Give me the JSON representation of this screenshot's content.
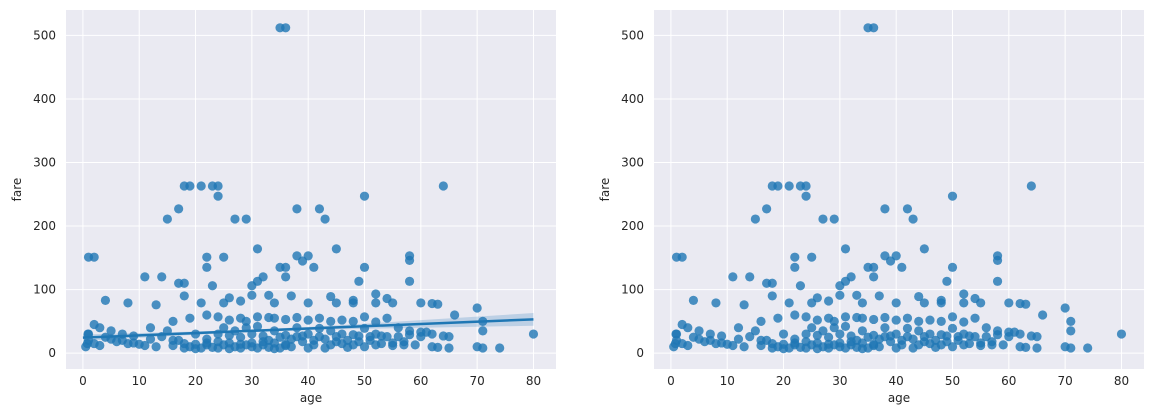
{
  "chart_data": [
    {
      "type": "scatter",
      "title": "",
      "xlabel": "age",
      "ylabel": "fare",
      "xlim": [
        -3,
        84
      ],
      "ylim": [
        -25,
        540
      ],
      "xticks": [
        0,
        10,
        20,
        30,
        40,
        50,
        60,
        70,
        80
      ],
      "yticks": [
        0,
        100,
        200,
        300,
        400,
        500
      ],
      "grid": true,
      "regression": {
        "shown": true,
        "intercept": 24.3,
        "slope": 0.36,
        "ci": [
          [
            0,
            5
          ],
          [
            20,
            2.5
          ],
          [
            30,
            2
          ],
          [
            40,
            2.5
          ],
          [
            50,
            4
          ],
          [
            60,
            6
          ],
          [
            70,
            8
          ],
          [
            80,
            10
          ]
        ]
      },
      "colors": {
        "point": "#1f77b4",
        "background": "#eaeaf2",
        "grid": "#ffffff"
      }
    },
    {
      "type": "scatter",
      "title": "",
      "xlabel": "age",
      "ylabel": "fare",
      "xlim": [
        -3,
        84
      ],
      "ylim": [
        -25,
        540
      ],
      "xticks": [
        0,
        10,
        20,
        30,
        40,
        50,
        60,
        70,
        80
      ],
      "yticks": [
        0,
        100,
        200,
        300,
        400,
        500
      ],
      "grid": true,
      "regression": {
        "shown": false
      },
      "colors": {
        "point": "#1f77b4",
        "background": "#eaeaf2",
        "grid": "#ffffff"
      }
    }
  ],
  "points": [
    [
      35,
      512
    ],
    [
      36,
      512
    ],
    [
      18,
      263
    ],
    [
      19,
      263
    ],
    [
      23,
      263
    ],
    [
      24,
      263
    ],
    [
      21,
      263
    ],
    [
      64,
      263
    ],
    [
      50,
      247
    ],
    [
      24,
      247
    ],
    [
      17,
      227
    ],
    [
      38,
      227
    ],
    [
      42,
      227
    ],
    [
      15,
      211
    ],
    [
      27,
      211
    ],
    [
      29,
      211
    ],
    [
      43,
      211
    ],
    [
      31,
      164
    ],
    [
      45,
      164
    ],
    [
      1,
      151
    ],
    [
      2,
      151
    ],
    [
      22,
      151
    ],
    [
      25,
      151
    ],
    [
      58,
      153
    ],
    [
      58,
      146
    ],
    [
      38,
      153
    ],
    [
      40,
      153
    ],
    [
      22,
      135
    ],
    [
      36,
      135
    ],
    [
      35,
      135
    ],
    [
      50,
      135
    ],
    [
      41,
      135
    ],
    [
      39,
      145
    ],
    [
      11,
      120
    ],
    [
      14,
      120
    ],
    [
      36,
      120
    ],
    [
      32,
      120
    ],
    [
      18,
      110
    ],
    [
      17,
      110
    ],
    [
      23,
      106
    ],
    [
      30,
      106
    ],
    [
      31,
      113
    ],
    [
      49,
      113
    ],
    [
      52,
      93
    ],
    [
      58,
      113
    ],
    [
      30,
      91
    ],
    [
      33,
      91
    ],
    [
      4,
      83
    ],
    [
      8,
      79
    ],
    [
      13,
      76
    ],
    [
      21,
      79
    ],
    [
      25,
      79
    ],
    [
      28,
      82
    ],
    [
      34,
      79
    ],
    [
      40,
      79
    ],
    [
      45,
      79
    ],
    [
      48,
      79
    ],
    [
      52,
      79
    ],
    [
      55,
      79
    ],
    [
      60,
      79
    ],
    [
      62,
      78
    ],
    [
      63,
      77
    ],
    [
      70,
      71
    ],
    [
      18,
      90
    ],
    [
      26,
      87
    ],
    [
      37,
      90
    ],
    [
      44,
      89
    ],
    [
      48,
      83
    ],
    [
      54,
      86
    ],
    [
      2,
      45
    ],
    [
      3,
      40
    ],
    [
      1,
      30
    ],
    [
      5,
      35
    ],
    [
      7,
      30
    ],
    [
      9,
      27
    ],
    [
      12,
      40
    ],
    [
      16,
      50
    ],
    [
      19,
      55
    ],
    [
      22,
      60
    ],
    [
      24,
      57
    ],
    [
      26,
      52
    ],
    [
      28,
      55
    ],
    [
      29,
      50
    ],
    [
      31,
      57
    ],
    [
      33,
      56
    ],
    [
      34,
      55
    ],
    [
      36,
      53
    ],
    [
      38,
      56
    ],
    [
      40,
      52
    ],
    [
      42,
      55
    ],
    [
      44,
      50
    ],
    [
      46,
      52
    ],
    [
      48,
      50
    ],
    [
      50,
      57
    ],
    [
      52,
      49
    ],
    [
      54,
      55
    ],
    [
      56,
      40
    ],
    [
      58,
      35
    ],
    [
      60,
      33
    ],
    [
      62,
      30
    ],
    [
      65,
      26
    ],
    [
      66,
      60
    ],
    [
      71,
      50
    ],
    [
      1,
      20
    ],
    [
      2,
      15
    ],
    [
      3,
      12
    ],
    [
      4,
      25
    ],
    [
      5,
      22
    ],
    [
      6,
      18
    ],
    [
      8,
      15
    ],
    [
      10,
      14
    ],
    [
      14,
      26
    ],
    [
      16,
      20
    ],
    [
      18,
      8
    ],
    [
      19,
      10
    ],
    [
      20,
      7
    ],
    [
      21,
      8
    ],
    [
      22,
      13
    ],
    [
      23,
      9
    ],
    [
      24,
      8
    ],
    [
      25,
      13
    ],
    [
      26,
      7
    ],
    [
      27,
      10
    ],
    [
      28,
      8
    ],
    [
      29,
      13
    ],
    [
      30,
      10
    ],
    [
      31,
      8
    ],
    [
      32,
      13
    ],
    [
      33,
      9
    ],
    [
      34,
      7
    ],
    [
      35,
      8
    ],
    [
      36,
      12
    ],
    [
      37,
      10
    ],
    [
      38,
      26
    ],
    [
      39,
      27
    ],
    [
      40,
      8
    ],
    [
      41,
      13
    ],
    [
      42,
      26
    ],
    [
      43,
      8
    ],
    [
      44,
      13
    ],
    [
      45,
      26
    ],
    [
      46,
      15
    ],
    [
      47,
      9
    ],
    [
      48,
      13
    ],
    [
      49,
      27
    ],
    [
      50,
      10
    ],
    [
      51,
      26
    ],
    [
      52,
      13
    ],
    [
      53,
      27
    ],
    [
      54,
      26
    ],
    [
      55,
      16
    ],
    [
      56,
      26
    ],
    [
      57,
      13
    ],
    [
      58,
      29
    ],
    [
      59,
      13
    ],
    [
      60,
      26
    ],
    [
      61,
      33
    ],
    [
      62,
      10
    ],
    [
      63,
      9
    ],
    [
      64,
      27
    ],
    [
      65,
      8
    ],
    [
      70,
      10
    ],
    [
      71,
      8
    ],
    [
      74,
      8
    ],
    [
      80,
      30
    ],
    [
      71,
      35
    ],
    [
      0.5,
      10
    ],
    [
      0.8,
      15
    ],
    [
      0.9,
      30
    ],
    [
      15,
      35
    ],
    [
      17,
      20
    ],
    [
      20,
      30
    ],
    [
      22,
      22
    ],
    [
      24,
      30
    ],
    [
      26,
      28
    ],
    [
      28,
      25
    ],
    [
      30,
      30
    ],
    [
      32,
      27
    ],
    [
      34,
      35
    ],
    [
      36,
      28
    ],
    [
      38,
      40
    ],
    [
      40,
      30
    ],
    [
      42,
      39
    ],
    [
      44,
      35
    ],
    [
      46,
      30
    ],
    [
      48,
      29
    ],
    [
      50,
      39
    ],
    [
      52,
      30
    ],
    [
      25,
      40
    ],
    [
      27,
      35
    ],
    [
      29,
      40
    ],
    [
      31,
      42
    ],
    [
      33,
      20
    ],
    [
      35,
      25
    ],
    [
      37,
      22
    ],
    [
      39,
      18
    ],
    [
      41,
      20
    ],
    [
      43,
      22
    ],
    [
      45,
      18
    ],
    [
      47,
      20
    ],
    [
      49,
      18
    ],
    [
      51,
      20
    ],
    [
      53,
      15
    ],
    [
      55,
      12
    ],
    [
      57,
      18
    ],
    [
      13,
      10
    ],
    [
      11,
      12
    ],
    [
      9,
      16
    ],
    [
      7,
      20
    ],
    [
      12,
      22
    ],
    [
      16,
      12
    ],
    [
      18,
      15
    ],
    [
      20,
      14
    ],
    [
      22,
      16
    ],
    [
      24,
      18
    ],
    [
      26,
      16
    ],
    [
      28,
      14
    ],
    [
      30,
      16
    ],
    [
      32,
      18
    ],
    [
      34,
      16
    ],
    [
      36,
      14
    ]
  ]
}
